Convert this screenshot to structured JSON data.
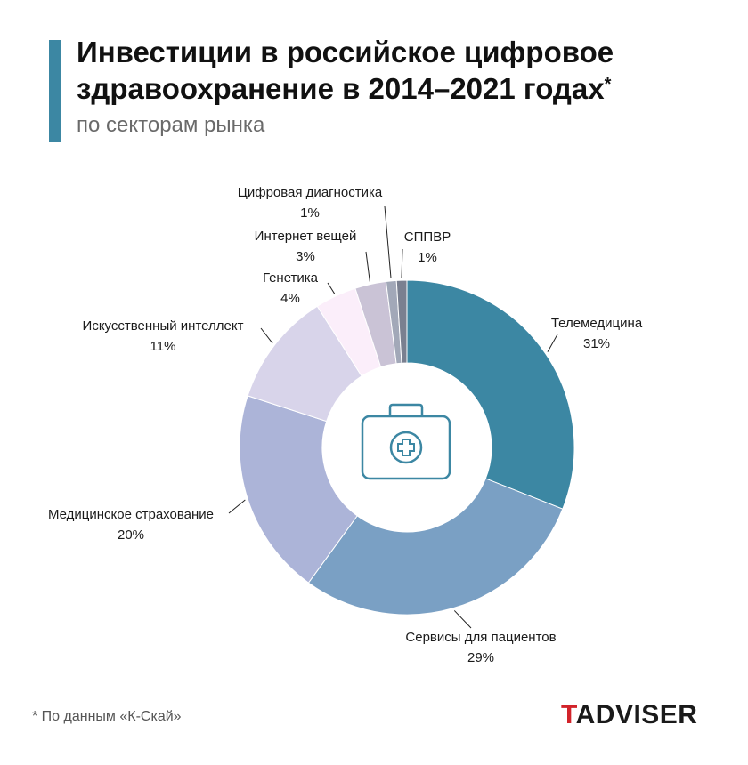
{
  "header": {
    "title": "Инвестиции в российское цифровое здравоохранение в 2014–2021 годах",
    "title_mark": "*",
    "subtitle": "по секторам рынка"
  },
  "chart_data": {
    "type": "pie",
    "donut": true,
    "slices": [
      {
        "label": "Телемедицина",
        "value": 31,
        "value_label": "31%",
        "color": "#3c87a3"
      },
      {
        "label": "Сервисы для пациентов",
        "value": 29,
        "value_label": "29%",
        "color": "#7aa0c4"
      },
      {
        "label": "Медицинское страхование",
        "value": 20,
        "value_label": "20%",
        "color": "#acb4d8"
      },
      {
        "label": "Искусственный интеллект",
        "value": 11,
        "value_label": "11%",
        "color": "#d8d4ea"
      },
      {
        "label": "Генетика",
        "value": 4,
        "value_label": "4%",
        "color": "#fbeefa"
      },
      {
        "label": "Интернет вещей",
        "value": 3,
        "value_label": "3%",
        "color": "#cac3d6"
      },
      {
        "label": "Цифровая диагностика",
        "value": 1,
        "value_label": "1%",
        "color": "#a2a8b8"
      },
      {
        "label": "СППВР",
        "value": 1,
        "value_label": "1%",
        "color": "#7a8090"
      }
    ],
    "center_icon": "medical-kit-icon",
    "colors": {
      "accent": "#3c87a3",
      "brand_red": "#d2232a"
    }
  },
  "footer": {
    "footnote": "* По данным «К-Скай»",
    "logo_first": "T",
    "logo_rest": "ADVISER"
  }
}
